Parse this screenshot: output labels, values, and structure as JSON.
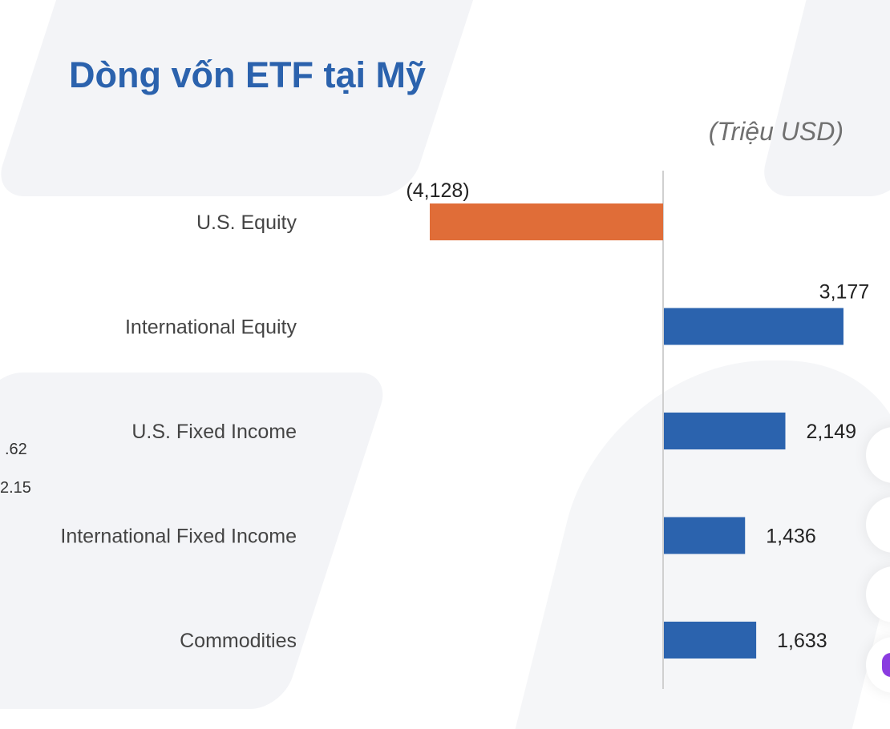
{
  "title": "Dòng vốn ETF tại Mỹ",
  "unit_label": "(Triệu USD)",
  "stray_labels": [
    ".62",
    "2.15"
  ],
  "colors": {
    "negative": "#e06d38",
    "positive": "#2b63ae",
    "axis": "#d0d0d0",
    "title": "#2b62ad"
  },
  "chart_data": {
    "type": "bar",
    "orientation": "horizontal",
    "categories": [
      "U.S. Equity",
      "International Equity",
      "U.S. Fixed Income",
      "International Fixed Income",
      "Commodities"
    ],
    "values": [
      -4128,
      3177,
      2149,
      1436,
      1633
    ],
    "data_labels": [
      "(4,128)",
      "3,177",
      "2,149",
      "1,436",
      "1,633"
    ],
    "xlabel": "",
    "ylabel": "",
    "grid": false
  }
}
